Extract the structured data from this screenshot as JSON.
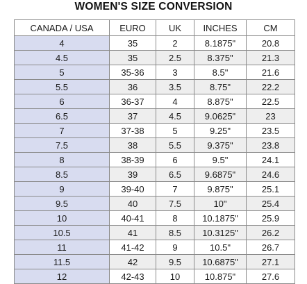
{
  "title": "WOMEN'S SIZE CONVERSION",
  "colors": {
    "first_column_bg": "#d8dcf0",
    "stripe_row_bg": "#eeeeee",
    "border": "#8a8a8a"
  },
  "table": {
    "headers": [
      "CANADA / USA",
      "EURO",
      "UK",
      "INCHES",
      "CM"
    ],
    "rows": [
      [
        "4",
        "35",
        "2",
        "8.1875\"",
        "20.8"
      ],
      [
        "4.5",
        "35",
        "2.5",
        "8.375\"",
        "21.3"
      ],
      [
        "5",
        "35-36",
        "3",
        "8.5\"",
        "21.6"
      ],
      [
        "5.5",
        "36",
        "3.5",
        "8.75\"",
        "22.2"
      ],
      [
        "6",
        "36-37",
        "4",
        "8.875\"",
        "22.5"
      ],
      [
        "6.5",
        "37",
        "4.5",
        "9.0625\"",
        "23"
      ],
      [
        "7",
        "37-38",
        "5",
        "9.25\"",
        "23.5"
      ],
      [
        "7.5",
        "38",
        "5.5",
        "9.375\"",
        "23.8"
      ],
      [
        "8",
        "38-39",
        "6",
        "9.5\"",
        "24.1"
      ],
      [
        "8.5",
        "39",
        "6.5",
        "9.6875\"",
        "24.6"
      ],
      [
        "9",
        "39-40",
        "7",
        "9.875\"",
        "25.1"
      ],
      [
        "9.5",
        "40",
        "7.5",
        "10\"",
        "25.4"
      ],
      [
        "10",
        "40-41",
        "8",
        "10.1875\"",
        "25.9"
      ],
      [
        "10.5",
        "41",
        "8.5",
        "10.3125\"",
        "26.2"
      ],
      [
        "11",
        "41-42",
        "9",
        "10.5\"",
        "26.7"
      ],
      [
        "11.5",
        "42",
        "9.5",
        "10.6875\"",
        "27.1"
      ],
      [
        "12",
        "42-43",
        "10",
        "10.875\"",
        "27.6"
      ]
    ]
  }
}
